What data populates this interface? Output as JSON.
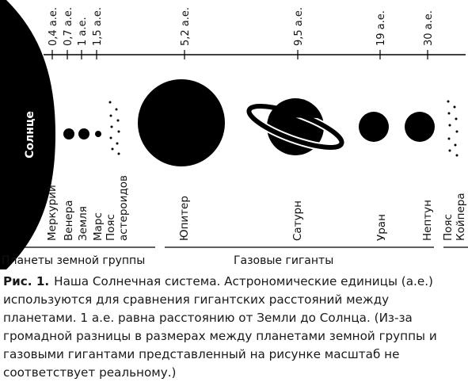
{
  "sun": {
    "label": "Солнце"
  },
  "au_ticks": [
    "0,4 а.е.",
    "0,7 а.е.",
    "1 а.е.",
    "1,5 а.е.",
    "5,2 а.е.",
    "9,5 а.е.",
    "19 а.е.",
    "30 а.е."
  ],
  "bodies": [
    {
      "id": "mercury",
      "label": "Меркурий",
      "type": "planet"
    },
    {
      "id": "venus",
      "label": "Венера",
      "type": "planet"
    },
    {
      "id": "earth",
      "label": "Земля",
      "type": "planet"
    },
    {
      "id": "mars",
      "label": "Марс",
      "type": "planet"
    },
    {
      "id": "asteroid-belt",
      "label": "Пояс астероидов",
      "type": "belt"
    },
    {
      "id": "jupiter",
      "label": "Юпитер",
      "type": "planet"
    },
    {
      "id": "saturn",
      "label": "Сатурн",
      "type": "planet"
    },
    {
      "id": "uranus",
      "label": "Уран",
      "type": "planet"
    },
    {
      "id": "neptune",
      "label": "Нептун",
      "type": "planet"
    },
    {
      "id": "kuiper-belt",
      "label": "Пояс Койпера",
      "type": "belt"
    }
  ],
  "groups": [
    {
      "id": "terrestrial",
      "label": "Планеты земной группы"
    },
    {
      "id": "giants",
      "label": "Газовые гиганты"
    }
  ],
  "caption": {
    "figure": "Рис. 1.",
    "text": "Наша Солнечная система. Астрономические единицы (а.е.) используются для сравнения гигантских расстояний между планетами. 1 а.е. равна расстоянию от Земли до Солнца. (Из-за громадной разницы в размерах между планетами земной группы и газовыми гигантами представленный на рисунке масштаб не соответствует реальному.)"
  }
}
